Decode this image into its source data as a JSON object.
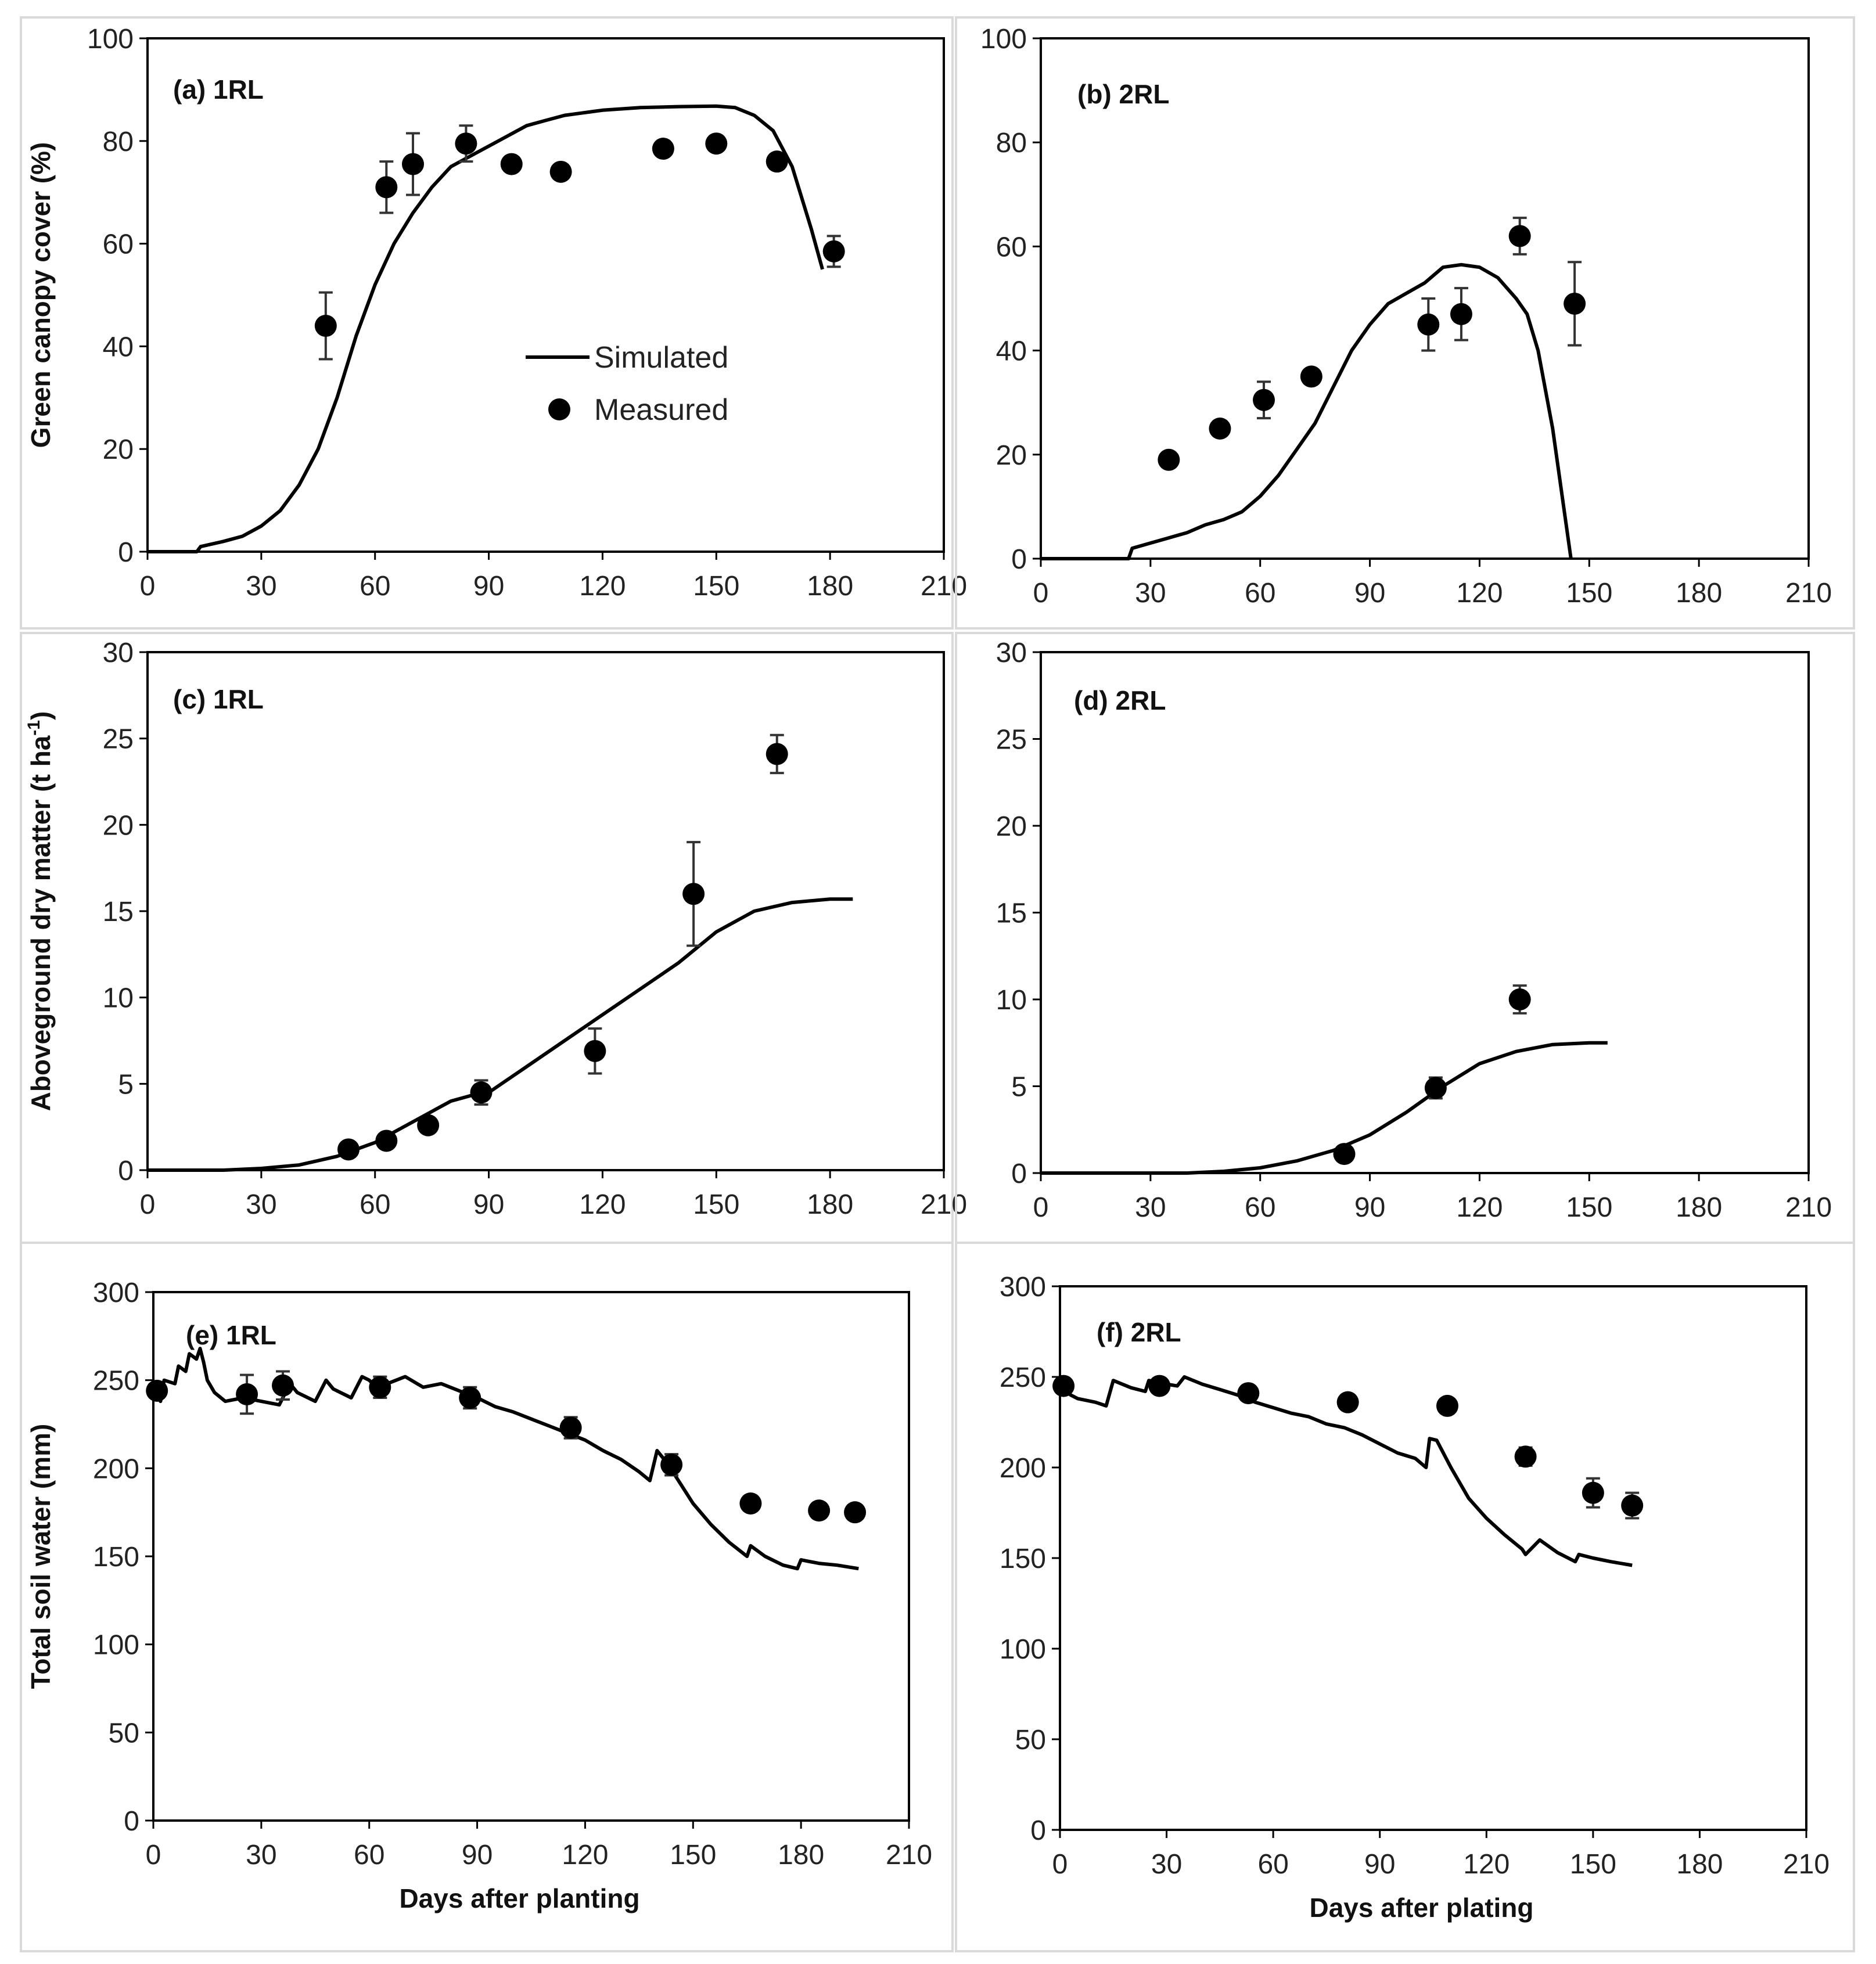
{
  "chart_data": [
    {
      "id": "a",
      "type": "line+scatter",
      "panel_label": "(a) 1RL",
      "ylabel": "Green canopy cover (%)",
      "xlabel": "",
      "xlim": [
        0,
        210
      ],
      "ylim": [
        0,
        100
      ],
      "xticks": [
        0,
        30,
        60,
        90,
        120,
        150,
        180,
        210
      ],
      "yticks": [
        0,
        20,
        40,
        60,
        80,
        100
      ],
      "legend": {
        "placement": "center",
        "simulated": "Simulated",
        "measured": "Measured"
      },
      "series": [
        {
          "name": "Simulated",
          "kind": "line",
          "x": [
            0,
            13,
            14,
            20,
            25,
            30,
            35,
            40,
            45,
            50,
            55,
            60,
            65,
            70,
            75,
            80,
            85,
            90,
            95,
            100,
            105,
            110,
            115,
            120,
            130,
            140,
            150,
            155,
            160,
            165,
            170,
            175,
            178
          ],
          "y": [
            0,
            0,
            1,
            2,
            3,
            5,
            8,
            13,
            20,
            30,
            42,
            52,
            60,
            66,
            71,
            75,
            77,
            79,
            81,
            83,
            84,
            85,
            85.5,
            86,
            86.5,
            86.7,
            86.8,
            86.5,
            85,
            82,
            75,
            63,
            55
          ]
        },
        {
          "name": "Measured",
          "kind": "scatter",
          "x": [
            47,
            63,
            70,
            84,
            96,
            109,
            136,
            150,
            166,
            181
          ],
          "y": [
            44,
            71,
            75.5,
            79.5,
            75.5,
            74,
            78.5,
            79.5,
            76,
            58.5
          ],
          "err": [
            6.5,
            5,
            6,
            3.5,
            0,
            0,
            0,
            0,
            0,
            3
          ]
        }
      ]
    },
    {
      "id": "b",
      "type": "line+scatter",
      "panel_label": "(b) 2RL",
      "ylabel": "",
      "xlabel": "",
      "xlim": [
        0,
        210
      ],
      "ylim": [
        0,
        100
      ],
      "xticks": [
        0,
        30,
        60,
        90,
        120,
        150,
        180,
        210
      ],
      "yticks": [
        0,
        20,
        40,
        60,
        80,
        100
      ],
      "series": [
        {
          "name": "Simulated",
          "kind": "line",
          "x": [
            0,
            24,
            25,
            30,
            35,
            40,
            45,
            50,
            55,
            60,
            65,
            70,
            75,
            80,
            85,
            90,
            95,
            100,
            105,
            110,
            115,
            120,
            125,
            130,
            133,
            136,
            140,
            143,
            145
          ],
          "y": [
            0,
            0,
            2,
            3,
            4,
            5,
            6.5,
            7.5,
            9,
            12,
            16,
            21,
            26,
            33,
            40,
            45,
            49,
            51,
            53,
            56,
            56.5,
            56,
            54,
            50,
            47,
            40,
            25,
            10,
            0
          ]
        },
        {
          "name": "Measured",
          "kind": "scatter",
          "x": [
            35,
            49,
            61,
            74,
            106,
            115,
            131,
            146
          ],
          "y": [
            19,
            25,
            30.5,
            35,
            45,
            47,
            62,
            49
          ],
          "err": [
            0,
            0,
            3.5,
            0,
            5,
            5,
            3.5,
            8
          ]
        }
      ]
    },
    {
      "id": "c",
      "type": "line+scatter",
      "panel_label": "(c) 1RL",
      "ylabel": "Aboveground dry matter (t ha-1)",
      "ylabel_main": "Aboveground dry matter (t ha",
      "ylabel_sup": "-1",
      "ylabel_tail": ")",
      "xlabel": "",
      "xlim": [
        0,
        210
      ],
      "ylim": [
        0,
        30
      ],
      "xticks": [
        0,
        30,
        60,
        90,
        120,
        150,
        180,
        210
      ],
      "yticks": [
        0,
        5,
        10,
        15,
        20,
        25,
        30
      ],
      "series": [
        {
          "name": "Simulated",
          "kind": "line",
          "x": [
            0,
            20,
            30,
            40,
            50,
            60,
            70,
            80,
            85,
            90,
            100,
            110,
            120,
            130,
            140,
            150,
            160,
            170,
            180,
            186
          ],
          "y": [
            0,
            0,
            0.1,
            0.3,
            0.8,
            1.6,
            2.8,
            4.0,
            4.3,
            4.5,
            6.0,
            7.5,
            9.0,
            10.5,
            12.0,
            13.8,
            15.0,
            15.5,
            15.7,
            15.7
          ]
        },
        {
          "name": "Measured",
          "kind": "scatter",
          "x": [
            53,
            63,
            74,
            88,
            118,
            144,
            166
          ],
          "y": [
            1.2,
            1.7,
            2.6,
            4.5,
            6.9,
            16,
            24.1
          ],
          "err": [
            0,
            0,
            0,
            0.7,
            1.3,
            3,
            1.1
          ]
        }
      ]
    },
    {
      "id": "d",
      "type": "line+scatter",
      "panel_label": "(d) 2RL",
      "ylabel": "",
      "xlabel": "",
      "xlim": [
        0,
        210
      ],
      "ylim": [
        0,
        30
      ],
      "xticks": [
        0,
        30,
        60,
        90,
        120,
        150,
        180,
        210
      ],
      "yticks": [
        0,
        5,
        10,
        15,
        20,
        25,
        30
      ],
      "series": [
        {
          "name": "Simulated",
          "kind": "line",
          "x": [
            0,
            40,
            50,
            60,
            70,
            80,
            90,
            100,
            110,
            120,
            130,
            140,
            150,
            155
          ],
          "y": [
            0,
            0,
            0.1,
            0.3,
            0.7,
            1.3,
            2.2,
            3.5,
            5.0,
            6.3,
            7.0,
            7.4,
            7.5,
            7.5
          ]
        },
        {
          "name": "Measured",
          "kind": "scatter",
          "x": [
            83,
            108,
            131
          ],
          "y": [
            1.1,
            4.9,
            10
          ],
          "err": [
            0,
            0.6,
            0.8
          ]
        }
      ]
    },
    {
      "id": "e",
      "type": "line+scatter",
      "panel_label": "(e) 1RL",
      "ylabel": "Total soil water (mm)",
      "xlabel": "Days after planting",
      "xlim": [
        0,
        210
      ],
      "ylim": [
        0,
        300
      ],
      "xticks": [
        0,
        30,
        60,
        90,
        120,
        150,
        180,
        210
      ],
      "yticks": [
        0,
        50,
        100,
        150,
        200,
        250,
        300
      ],
      "series": [
        {
          "name": "Simulated",
          "kind": "line",
          "x": [
            0,
            2,
            3,
            6,
            7,
            9,
            10,
            12,
            13,
            14,
            15,
            17,
            20,
            25,
            30,
            35,
            38,
            40,
            45,
            48,
            50,
            55,
            58,
            60,
            63,
            65,
            70,
            75,
            80,
            85,
            90,
            95,
            100,
            105,
            110,
            115,
            120,
            125,
            130,
            135,
            138,
            140,
            142,
            145,
            150,
            155,
            160,
            165,
            166,
            170,
            175,
            179,
            180,
            185,
            190,
            196
          ],
          "y": [
            243,
            238,
            250,
            248,
            258,
            255,
            265,
            262,
            268,
            260,
            250,
            243,
            238,
            240,
            238,
            236,
            248,
            243,
            238,
            250,
            245,
            240,
            252,
            250,
            244,
            248,
            252,
            246,
            248,
            244,
            240,
            235,
            232,
            228,
            224,
            220,
            216,
            210,
            205,
            198,
            193,
            210,
            205,
            196,
            180,
            168,
            158,
            150,
            156,
            150,
            145,
            143,
            148,
            146,
            145,
            143
          ]
        },
        {
          "name": "Measured",
          "kind": "scatter",
          "x": [
            1,
            26,
            36,
            63,
            88,
            116,
            144,
            166,
            185,
            195
          ],
          "y": [
            244,
            242,
            247,
            246,
            240,
            223,
            202,
            180,
            176,
            175
          ],
          "err": [
            4,
            11,
            8,
            6,
            6,
            6,
            6,
            0,
            0,
            0
          ]
        }
      ]
    },
    {
      "id": "f",
      "type": "line+scatter",
      "panel_label": "(f) 2RL",
      "ylabel": "",
      "xlabel": "Days after plating",
      "xlim": [
        0,
        210
      ],
      "ylim": [
        0,
        300
      ],
      "xticks": [
        0,
        30,
        60,
        90,
        120,
        150,
        180,
        210
      ],
      "yticks": [
        0,
        50,
        100,
        150,
        200,
        250,
        300
      ],
      "series": [
        {
          "name": "Simulated",
          "kind": "line",
          "x": [
            0,
            3,
            5,
            10,
            13,
            15,
            20,
            24,
            25,
            30,
            33,
            35,
            40,
            45,
            50,
            55,
            60,
            65,
            70,
            75,
            80,
            85,
            90,
            95,
            100,
            103,
            104,
            106,
            110,
            115,
            120,
            125,
            130,
            131,
            135,
            140,
            145,
            146,
            150,
            155,
            161
          ],
          "y": [
            245,
            240,
            238,
            236,
            234,
            248,
            244,
            242,
            248,
            246,
            245,
            250,
            246,
            243,
            240,
            236,
            233,
            230,
            228,
            224,
            222,
            218,
            213,
            208,
            205,
            200,
            216,
            215,
            200,
            183,
            172,
            163,
            155,
            152,
            160,
            153,
            148,
            152,
            150,
            148,
            146
          ]
        },
        {
          "name": "Measured",
          "kind": "scatter",
          "x": [
            1,
            28,
            53,
            81,
            109,
            131,
            150,
            161
          ],
          "y": [
            245,
            245,
            241,
            236,
            234,
            206,
            186,
            179
          ],
          "err": [
            0,
            0,
            0,
            0,
            0,
            5,
            8,
            7
          ]
        }
      ]
    }
  ]
}
